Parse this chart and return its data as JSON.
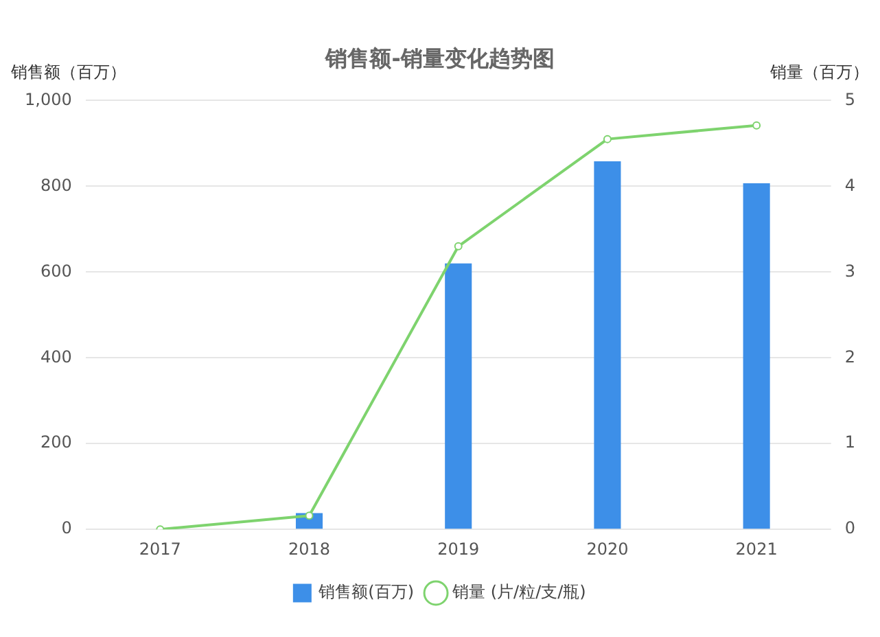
{
  "chart_data": {
    "type": "bar",
    "title": "销售额-销量变化趋势图",
    "ylabel": "销售额（百万）",
    "y2label": "销量（百万）",
    "categories": [
      "2017",
      "2018",
      "2019",
      "2020",
      "2021"
    ],
    "series": [
      {
        "name": "销售额(百万)",
        "color": "#3d8fe8",
        "values": [
          0,
          38,
          620,
          858,
          807
        ]
      },
      {
        "name": "销量 (片/粒/支/瓶)",
        "type": "line",
        "axis": "y2",
        "color": "#7ed36e",
        "marker": "circle",
        "values": [
          0,
          0.16,
          3.3,
          4.55,
          4.71
        ]
      }
    ],
    "ylim": [
      0,
      1000
    ],
    "yticks": [
      0,
      200,
      400,
      600,
      800,
      {
        "value": 1000,
        "label": "1,000"
      }
    ],
    "y2lim": [
      0,
      5
    ],
    "y2ticks": [
      0,
      1,
      2,
      3,
      4,
      5
    ],
    "grid": "y",
    "legend": "bottom"
  }
}
